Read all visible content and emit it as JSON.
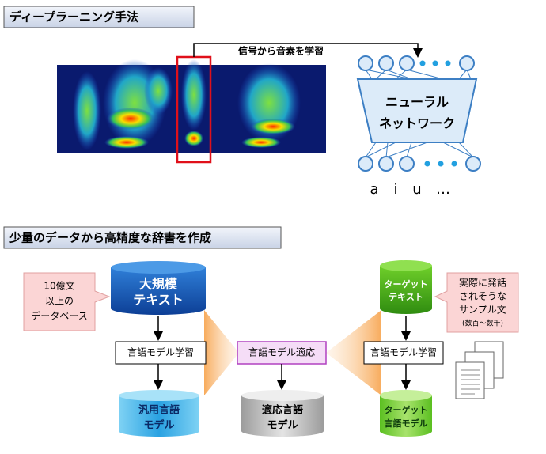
{
  "section1": {
    "title": "ディープラーニング手法",
    "arrow_label": "信号から音素を学習",
    "network_label": [
      "ニューラル",
      "ネットワーク"
    ],
    "outputs": [
      "a",
      "i",
      "u",
      "…"
    ]
  },
  "section2": {
    "title": "少量のデータから高精度な辞書を作成",
    "large_text": [
      "大規模",
      "テキスト"
    ],
    "large_text_note": [
      "10億文",
      "以上の",
      "データベース"
    ],
    "target_text": [
      "ターゲット",
      "テキスト"
    ],
    "target_text_note": [
      "実際に発話",
      "されそうな",
      "サンプル文",
      "(数百～数千)"
    ],
    "boxes": [
      "言語モデル学習",
      "言語モデル適応",
      "言語モデル学習"
    ],
    "models": [
      [
        "汎用言語",
        "モデル"
      ],
      [
        "適応言語",
        "モデル"
      ],
      [
        "ターゲット",
        "言語モデル"
      ]
    ]
  }
}
